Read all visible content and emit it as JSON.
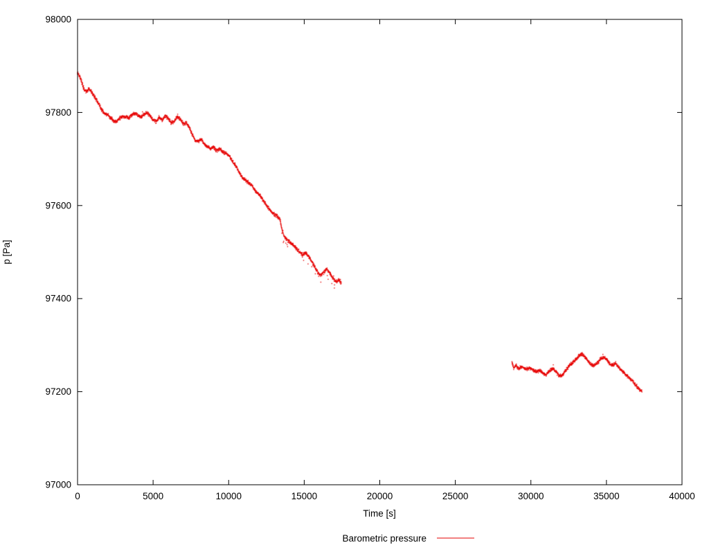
{
  "chart_data": {
    "type": "scatter",
    "title": "",
    "xlabel": "Time [s]",
    "ylabel": "p [Pa]",
    "xlim": [
      0,
      40000
    ],
    "ylim": [
      97000,
      98000
    ],
    "xticks": [
      0,
      5000,
      10000,
      15000,
      20000,
      25000,
      30000,
      35000,
      40000
    ],
    "yticks": [
      97000,
      97200,
      97400,
      97600,
      97800,
      98000
    ],
    "grid": false,
    "legend": {
      "label": "Barometric pressure",
      "position": "bottom-center"
    },
    "series": [
      {
        "name": "Barometric pressure",
        "color": "#e60000",
        "style": "dots",
        "segments": [
          [
            [
              0,
              97885
            ],
            [
              150,
              97878
            ],
            [
              300,
              97862
            ],
            [
              450,
              97848
            ],
            [
              600,
              97845
            ],
            [
              750,
              97852
            ],
            [
              900,
              97845
            ],
            [
              1050,
              97838
            ],
            [
              1200,
              97830
            ],
            [
              1400,
              97818
            ],
            [
              1600,
              97805
            ],
            [
              1800,
              97798
            ],
            [
              2000,
              97795
            ],
            [
              2200,
              97788
            ],
            [
              2400,
              97782
            ],
            [
              2600,
              97780
            ],
            [
              2800,
              97788
            ],
            [
              3000,
              97792
            ],
            [
              3200,
              97790
            ],
            [
              3400,
              97788
            ],
            [
              3600,
              97795
            ],
            [
              3800,
              97798
            ],
            [
              4000,
              97795
            ],
            [
              4200,
              97790
            ],
            [
              4400,
              97795
            ],
            [
              4600,
              97800
            ],
            [
              4800,
              97792
            ],
            [
              5000,
              97785
            ],
            [
              5200,
              97780
            ],
            [
              5400,
              97790
            ],
            [
              5600,
              97783
            ],
            [
              5800,
              97792
            ],
            [
              6000,
              97788
            ],
            [
              6200,
              97778
            ],
            [
              6400,
              97780
            ],
            [
              6600,
              97792
            ],
            [
              6800,
              97785
            ],
            [
              7000,
              97775
            ],
            [
              7200,
              97778
            ],
            [
              7400,
              97768
            ],
            [
              7600,
              97752
            ],
            [
              7800,
              97740
            ],
            [
              8000,
              97738
            ],
            [
              8200,
              97742
            ],
            [
              8400,
              97732
            ],
            [
              8600,
              97726
            ],
            [
              8800,
              97722
            ],
            [
              9000,
              97726
            ],
            [
              9200,
              97718
            ],
            [
              9400,
              97722
            ],
            [
              9600,
              97716
            ],
            [
              9800,
              97712
            ],
            [
              10000,
              97708
            ],
            [
              10200,
              97698
            ],
            [
              10400,
              97688
            ],
            [
              10600,
              97678
            ],
            [
              10800,
              97665
            ],
            [
              11000,
              97658
            ],
            [
              11200,
              97652
            ],
            [
              11400,
              97648
            ],
            [
              11600,
              97640
            ],
            [
              11800,
              97630
            ],
            [
              12000,
              97624
            ],
            [
              12200,
              97615
            ],
            [
              12400,
              97605
            ],
            [
              12600,
              97595
            ],
            [
              12800,
              97588
            ],
            [
              13000,
              97582
            ],
            [
              13200,
              97578
            ],
            [
              13400,
              97570
            ],
            [
              13500,
              97552
            ],
            [
              13700,
              97532
            ],
            [
              13900,
              97526
            ],
            [
              14100,
              97520
            ],
            [
              14300,
              97514
            ],
            [
              14500,
              97506
            ],
            [
              14700,
              97500
            ],
            [
              14900,
              97494
            ],
            [
              15100,
              97500
            ],
            [
              15300,
              97490
            ],
            [
              15500,
              97480
            ],
            [
              15700,
              97468
            ],
            [
              15900,
              97456
            ],
            [
              16100,
              97450
            ],
            [
              16300,
              97456
            ],
            [
              16500,
              97464
            ],
            [
              16700,
              97455
            ],
            [
              16900,
              97444
            ],
            [
              17100,
              97436
            ],
            [
              17300,
              97440
            ],
            [
              17450,
              97434
            ]
          ],
          [
            [
              28750,
              97262
            ],
            [
              28850,
              97250
            ],
            [
              29000,
              97256
            ],
            [
              29200,
              97250
            ],
            [
              29400,
              97253
            ],
            [
              29600,
              97250
            ],
            [
              29800,
              97249
            ],
            [
              30000,
              97251
            ],
            [
              30200,
              97246
            ],
            [
              30400,
              97243
            ],
            [
              30600,
              97246
            ],
            [
              30800,
              97240
            ],
            [
              31000,
              97236
            ],
            [
              31200,
              97244
            ],
            [
              31400,
              97250
            ],
            [
              31600,
              97246
            ],
            [
              31800,
              97237
            ],
            [
              32000,
              97233
            ],
            [
              32200,
              97240
            ],
            [
              32400,
              97250
            ],
            [
              32600,
              97258
            ],
            [
              32800,
              97264
            ],
            [
              33000,
              97270
            ],
            [
              33200,
              97278
            ],
            [
              33400,
              97281
            ],
            [
              33600,
              97274
            ],
            [
              33800,
              97266
            ],
            [
              34000,
              97258
            ],
            [
              34200,
              97256
            ],
            [
              34400,
              97262
            ],
            [
              34600,
              97270
            ],
            [
              34800,
              97274
            ],
            [
              35000,
              97270
            ],
            [
              35200,
              97260
            ],
            [
              35400,
              97256
            ],
            [
              35600,
              97261
            ],
            [
              35800,
              97254
            ],
            [
              36000,
              97246
            ],
            [
              36200,
              97240
            ],
            [
              36400,
              97232
            ],
            [
              36600,
              97227
            ],
            [
              36800,
              97220
            ],
            [
              37000,
              97212
            ],
            [
              37200,
              97204
            ],
            [
              37350,
              97200
            ]
          ]
        ]
      }
    ]
  }
}
